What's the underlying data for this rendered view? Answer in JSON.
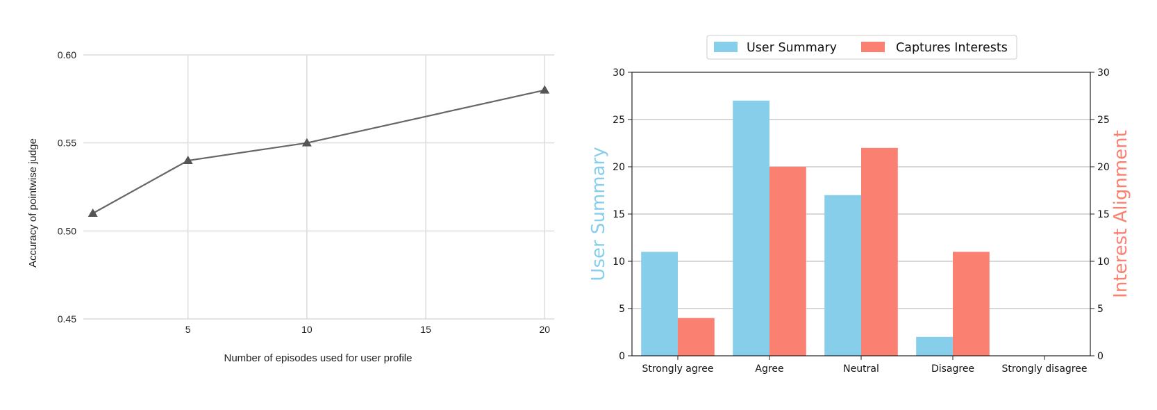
{
  "chart_data": [
    {
      "type": "line",
      "xlabel": "Number of episodes used for user profile",
      "ylabel": "Accuracy of pointwise judge",
      "x": [
        1,
        5,
        10,
        20
      ],
      "values": [
        0.51,
        0.54,
        0.55,
        0.58
      ],
      "xlim": [
        0.6,
        20.4
      ],
      "ylim": [
        0.45,
        0.6
      ],
      "xticks": [
        5,
        10,
        15,
        20
      ],
      "yticks": [
        0.45,
        0.5,
        0.55,
        0.6
      ],
      "ytick_labels": [
        "0.45",
        "0.50",
        "0.55",
        "0.60"
      ],
      "marker": "triangle",
      "line_color": "#666666",
      "grid": true
    },
    {
      "type": "bar",
      "categories": [
        "Strongly agree",
        "Agree",
        "Neutral",
        "Disagree",
        "Strongly disagree"
      ],
      "series": [
        {
          "name": "User Summary",
          "values": [
            11,
            27,
            17,
            2,
            0
          ],
          "color": "#87CEEB"
        },
        {
          "name": "Captures Interests",
          "values": [
            4,
            20,
            22,
            11,
            0
          ],
          "color": "#FA8072"
        }
      ],
      "ylabel": "User Summary",
      "ylabel_right": "Interest Alignment",
      "ylim": [
        0,
        30
      ],
      "yticks": [
        0,
        5,
        10,
        15,
        20,
        25,
        30
      ],
      "legend": "top-center",
      "grid": true
    }
  ]
}
